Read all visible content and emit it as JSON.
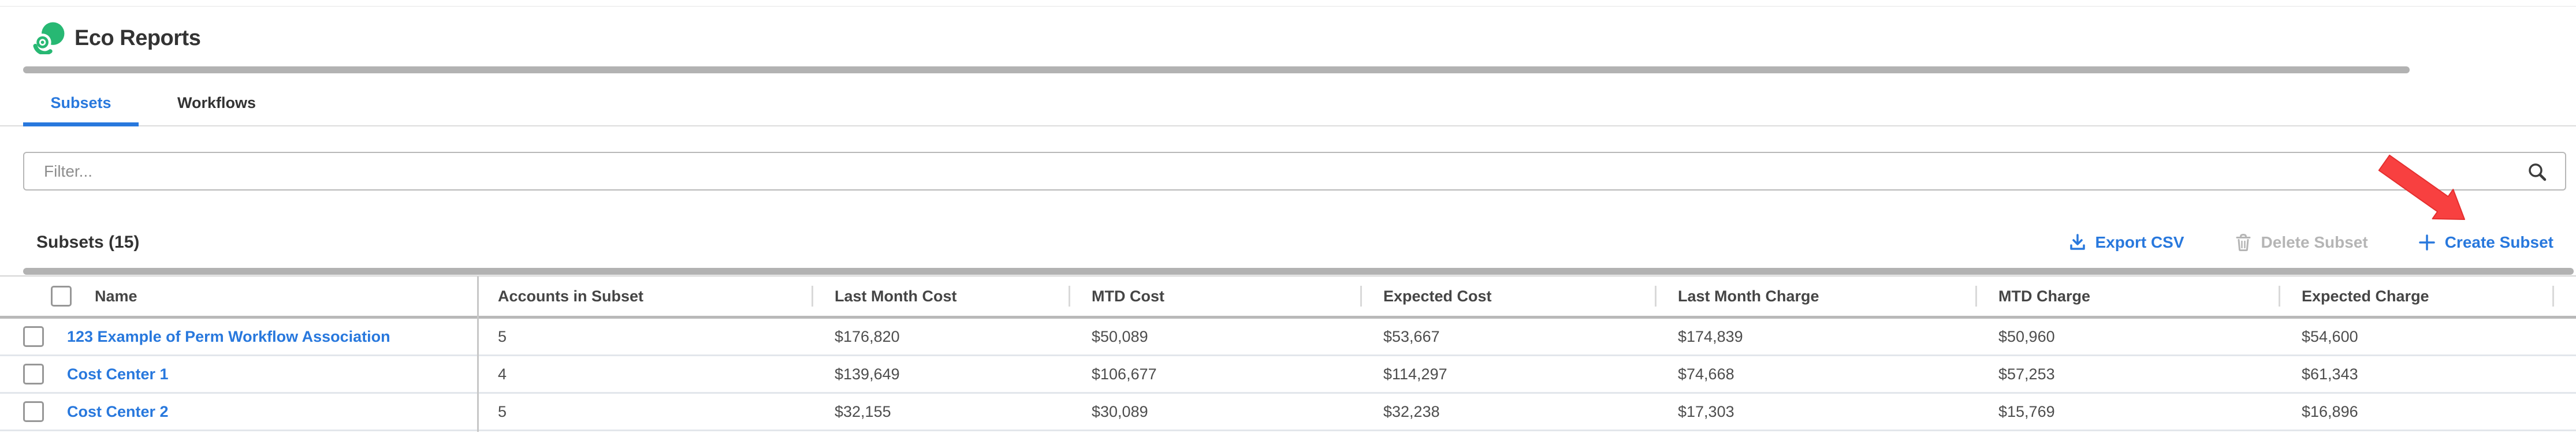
{
  "app": {
    "title": "Eco Reports"
  },
  "tabs": [
    {
      "label": "Subsets",
      "active": true
    },
    {
      "label": "Workflows",
      "active": false
    }
  ],
  "filter": {
    "placeholder": "Filter..."
  },
  "section": {
    "title": "Subsets (15)"
  },
  "actions": {
    "export_csv": "Export CSV",
    "delete_subset": "Delete Subset",
    "create_subset": "Create Subset"
  },
  "icons": {
    "logo": "eco-logo",
    "search": "search-icon",
    "export": "download-icon",
    "delete": "trash-icon",
    "create": "plus-icon",
    "annotation": "red-arrow-pointer"
  },
  "colors": {
    "accent_blue": "#2878dd",
    "disabled_gray": "#b5b5b5",
    "logo_green": "#27b873",
    "arrow_red": "#f84040"
  },
  "table": {
    "columns": [
      "Name",
      "Accounts in Subset",
      "Last Month Cost",
      "MTD Cost",
      "Expected Cost",
      "Last Month Charge",
      "MTD Charge",
      "Expected Charge"
    ],
    "rows": [
      {
        "name": "123 Example of Perm Workflow Association",
        "accounts": "5",
        "last_month_cost": "$176,820",
        "mtd_cost": "$50,089",
        "expected_cost": "$53,667",
        "last_month_charge": "$174,839",
        "mtd_charge": "$50,960",
        "expected_charge": "$54,600"
      },
      {
        "name": "Cost Center 1",
        "accounts": "4",
        "last_month_cost": "$139,649",
        "mtd_cost": "$106,677",
        "expected_cost": "$114,297",
        "last_month_charge": "$74,668",
        "mtd_charge": "$57,253",
        "expected_charge": "$61,343"
      },
      {
        "name": "Cost Center 2",
        "accounts": "5",
        "last_month_cost": "$32,155",
        "mtd_cost": "$30,089",
        "expected_cost": "$32,238",
        "last_month_charge": "$17,303",
        "mtd_charge": "$15,769",
        "expected_charge": "$16,896"
      }
    ]
  }
}
